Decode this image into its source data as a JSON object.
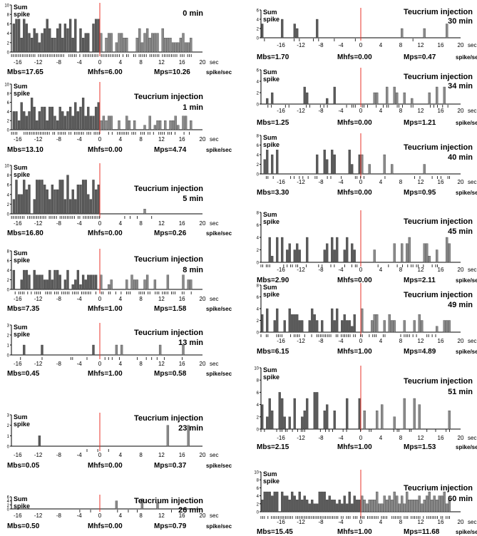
{
  "figure": {
    "sum_label": "Sum",
    "spike_label": "spike",
    "x_unit": "sec",
    "rate_unit": "spike/sec",
    "stat_labels": {
      "mbs": "Mbs=",
      "mhfs": "Mhfs=",
      "mps": "Mps="
    }
  },
  "chart_data": [
    {
      "type": "bar",
      "title": "0 min",
      "subtitle": "",
      "ymax": 10,
      "yticks": [
        0,
        2,
        4,
        6,
        8,
        10
      ],
      "xticks": [
        "-16",
        "-12",
        "-8",
        "-4",
        "0",
        "4",
        "8",
        "12",
        "16",
        "20"
      ],
      "xlim": [
        -20,
        20
      ],
      "stats": {
        "mbs": "17.65",
        "mhfs": "6.00",
        "mps": "10.26"
      }
    },
    {
      "type": "bar",
      "title": "1 min",
      "subtitle": "Teucrium injection",
      "ymax": 10,
      "yticks": [
        0,
        2,
        4,
        6,
        8,
        10
      ],
      "xticks": [
        "-16",
        "-12",
        "-8",
        "-4",
        "0",
        "4",
        "8",
        "12",
        "16",
        "20"
      ],
      "xlim": [
        -20,
        20
      ],
      "stats": {
        "mbs": "13.10",
        "mhfs": "0.00",
        "mps": "4.74"
      }
    },
    {
      "type": "bar",
      "title": "5 min",
      "subtitle": "Teucrium injection",
      "ymax": 10,
      "yticks": [
        0,
        2,
        4,
        6,
        8,
        10
      ],
      "xticks": [
        "-16",
        "-12",
        "-8",
        "-4",
        "0",
        "4",
        "8",
        "12",
        "16",
        "20"
      ],
      "xlim": [
        -20,
        20
      ],
      "stats": {
        "mbs": "16.80",
        "mhfs": "0.00",
        "mps": "0.26"
      }
    },
    {
      "type": "bar",
      "title": "8 min",
      "subtitle": "Teucrium injection",
      "ymax": 8,
      "yticks": [
        0,
        2,
        4,
        6,
        8
      ],
      "xticks": [
        "-16",
        "-12",
        "-8",
        "-4",
        "0",
        "4",
        "8",
        "12",
        "16",
        "20"
      ],
      "xlim": [
        -20,
        20
      ],
      "stats": {
        "mbs": "7.35",
        "mhfs": "1.00",
        "mps": "1.58"
      }
    },
    {
      "type": "bar",
      "title": "13 min",
      "subtitle": "Teucrium injection",
      "ymax": 3,
      "yticks": [
        0,
        1,
        2,
        3
      ],
      "xticks": [
        "-16",
        "-12",
        "-8",
        "-4",
        "0",
        "4",
        "8",
        "12",
        "16",
        "20"
      ],
      "xlim": [
        -20,
        20
      ],
      "stats": {
        "mbs": "0.45",
        "mhfs": "1.00",
        "mps": "0.58"
      }
    },
    {
      "type": "bar",
      "title": "23 min",
      "subtitle": "Teucrium injection",
      "ymax": 3,
      "yticks": [
        0,
        1,
        2,
        3
      ],
      "xticks": [
        "-16",
        "-12",
        "-8",
        "-4",
        "0",
        "4",
        "8",
        "12",
        "16",
        "20"
      ],
      "xlim": [
        -20,
        20
      ],
      "stats": {
        "mbs": "0.05",
        "mhfs": "0.00",
        "mps": "0.37"
      }
    },
    {
      "type": "bar",
      "title": "26 min",
      "subtitle": "Teucrium injection",
      "ymax": 6,
      "yticks": [
        0,
        2,
        4,
        6
      ],
      "xticks": [
        "-16",
        "-12",
        "-8",
        "-4",
        "0",
        "4",
        "8",
        "12",
        "16",
        "20"
      ],
      "xlim": [
        -20,
        20
      ],
      "stats": {
        "mbs": "0.50",
        "mhfs": "0.00",
        "mps": "0.79"
      }
    },
    {
      "type": "bar",
      "title": "30 min",
      "subtitle": "Teucrium injection",
      "ymax": 6,
      "yticks": [
        0,
        2,
        4,
        6
      ],
      "xticks": [
        "-16",
        "-12",
        "-8",
        "-4",
        "0",
        "4",
        "8",
        "12",
        "16",
        "20"
      ],
      "xlim": [
        -20,
        20
      ],
      "stats": {
        "mbs": "1.70",
        "mhfs": "0.00",
        "mps": "0.47"
      }
    },
    {
      "type": "bar",
      "title": "34 min",
      "subtitle": "Teucrium injection",
      "ymax": 6,
      "yticks": [
        0,
        2,
        4,
        6
      ],
      "xticks": [
        "-16",
        "-12",
        "-8",
        "-4",
        "0",
        "4",
        "8",
        "12",
        "16",
        "20"
      ],
      "xlim": [
        -20,
        20
      ],
      "stats": {
        "mbs": "1.25",
        "mhfs": "0.00",
        "mps": "1.21"
      }
    },
    {
      "type": "bar",
      "title": "40 min",
      "subtitle": "Teucrium injection",
      "ymax": 8,
      "yticks": [
        0,
        2,
        4,
        6,
        8
      ],
      "xticks": [
        "-16",
        "-12",
        "-8",
        "-4",
        "0",
        "4",
        "8",
        "12",
        "16",
        "20"
      ],
      "xlim": [
        -20,
        20
      ],
      "stats": {
        "mbs": "3.30",
        "mhfs": "0.00",
        "mps": "0.95"
      }
    },
    {
      "type": "bar",
      "title": "45 min",
      "subtitle": "Teucrium injection",
      "ymax": 8,
      "yticks": [
        0,
        2,
        4,
        6,
        8
      ],
      "xticks": [
        "-16",
        "-12",
        "-8",
        "-4",
        "0",
        "4",
        "8",
        "12",
        "16",
        "20"
      ],
      "xlim": [
        -20,
        20
      ],
      "stats": {
        "mbs": "2.90",
        "mhfs": "0.00",
        "mps": "2.11"
      }
    },
    {
      "type": "bar",
      "title": "49 min",
      "subtitle": "Teucrium injection",
      "ymax": 8,
      "yticks": [
        0,
        2,
        4,
        6,
        8
      ],
      "xticks": [
        "-16",
        "-12",
        "-8",
        "-4",
        "0",
        "4",
        "8",
        "12",
        "16",
        "20"
      ],
      "xlim": [
        -20,
        20
      ],
      "stats": {
        "mbs": "6.15",
        "mhfs": "1.00",
        "mps": "4.89"
      }
    },
    {
      "type": "bar",
      "title": "51 min",
      "subtitle": "Teucrium injection",
      "ymax": 10,
      "yticks": [
        0,
        2,
        4,
        6,
        8,
        10
      ],
      "xticks": [
        "-16",
        "-12",
        "-8",
        "-4",
        "0",
        "4",
        "8",
        "12",
        "16",
        "20"
      ],
      "xlim": [
        -20,
        20
      ],
      "stats": {
        "mbs": "2.15",
        "mhfs": "1.00",
        "mps": "1.53"
      }
    },
    {
      "type": "bar",
      "title": "60 min",
      "subtitle": "Teucrium injection",
      "ymax": 10,
      "yticks": [
        0,
        2,
        4,
        6,
        8,
        10
      ],
      "xticks": [
        "-16",
        "-12",
        "-8",
        "-4",
        "0",
        "4",
        "8",
        "12",
        "16",
        "20"
      ],
      "xlim": [
        -20,
        20
      ],
      "stats": {
        "mbs": "15.45",
        "mhfs": "1.00",
        "mps": "11.68"
      }
    }
  ],
  "colors": {
    "pre": "#5a5a5a",
    "post": "#8a8a8a",
    "marker": "#e8332a",
    "axis": "#000000"
  }
}
